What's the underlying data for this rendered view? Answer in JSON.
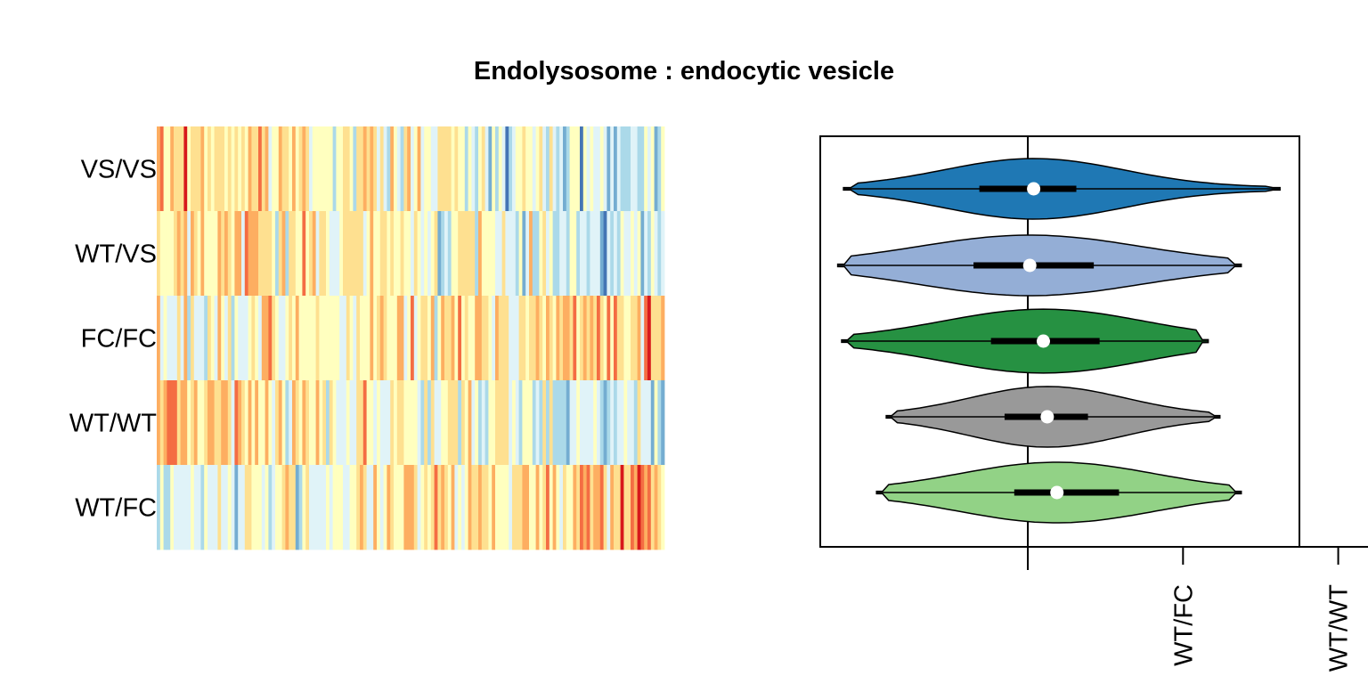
{
  "chart_data": [
    {
      "type": "heatmap",
      "title": "Endolysosome : endocytic vesicle",
      "rows": [
        "VS/VS",
        "WT/VS",
        "FC/FC",
        "WT/WT",
        "WT/FC"
      ],
      "n_columns": 150,
      "value_range": [
        -1,
        1
      ],
      "palette": [
        "#d7191c",
        "#f46d43",
        "#fdae61",
        "#fee090",
        "#ffffbf",
        "#e0f3f8",
        "#abd9e9",
        "#74add1",
        "#4575b4"
      ],
      "columns_sorted_by_row": "WT/FC",
      "color_scale": "RdYlBu (red = high, blue = low)"
    },
    {
      "type": "violin",
      "orientation": "horizontal",
      "groups": [
        {
          "color": "#1f78b4",
          "min": -0.95,
          "q1": -0.25,
          "median": 0.03,
          "q3": 0.25,
          "max": 1.3,
          "max_density": 0.36
        },
        {
          "color": "#94aed6",
          "min": -0.98,
          "q1": -0.28,
          "median": 0.01,
          "q3": 0.34,
          "max": 1.1,
          "max_density": 0.36
        },
        {
          "color": "#269142",
          "min": -0.96,
          "q1": -0.19,
          "median": 0.08,
          "q3": 0.37,
          "max": 0.93,
          "max_density": 0.38
        },
        {
          "color": "#999999",
          "min": -0.73,
          "q1": -0.12,
          "median": 0.1,
          "q3": 0.31,
          "max": 0.99,
          "max_density": 0.36
        },
        {
          "color": "#92d286",
          "min": -0.78,
          "q1": -0.07,
          "median": 0.15,
          "q3": 0.47,
          "max": 1.1,
          "max_density": 0.36
        }
      ],
      "reference_line_x": 0,
      "xlim": [
        -1.07,
        1.4
      ],
      "x_ticks": [
        {
          "value": 0,
          "label": ""
        },
        {
          "value": 0.8,
          "label": "WT/FC"
        },
        {
          "value": 1.6,
          "label": "WT/WT"
        }
      ],
      "box": true
    }
  ]
}
